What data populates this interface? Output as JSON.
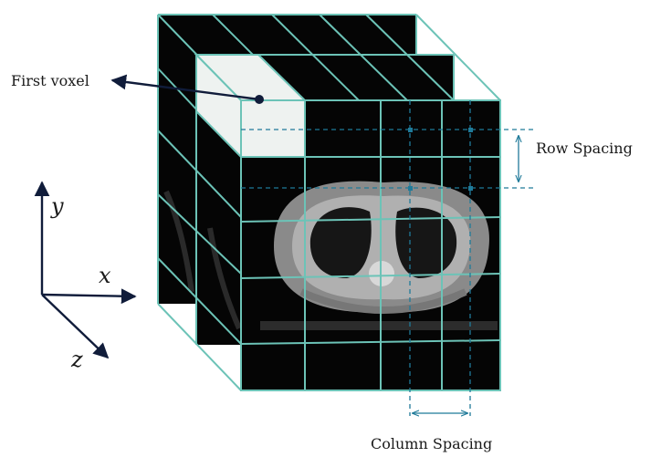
{
  "labels": {
    "first_voxel": "First voxel",
    "row_spacing": "Row Spacing",
    "column_spacing": "Column Spacing"
  },
  "axes": {
    "x": "x",
    "y": "y",
    "z": "z"
  },
  "colors": {
    "grid": "#6cc3b7",
    "dashed": "#1f7a99",
    "marker": "#1f7a99",
    "slice_fill": "#050505",
    "highlight": "#eef2f0",
    "arrow": "#101c3a"
  }
}
